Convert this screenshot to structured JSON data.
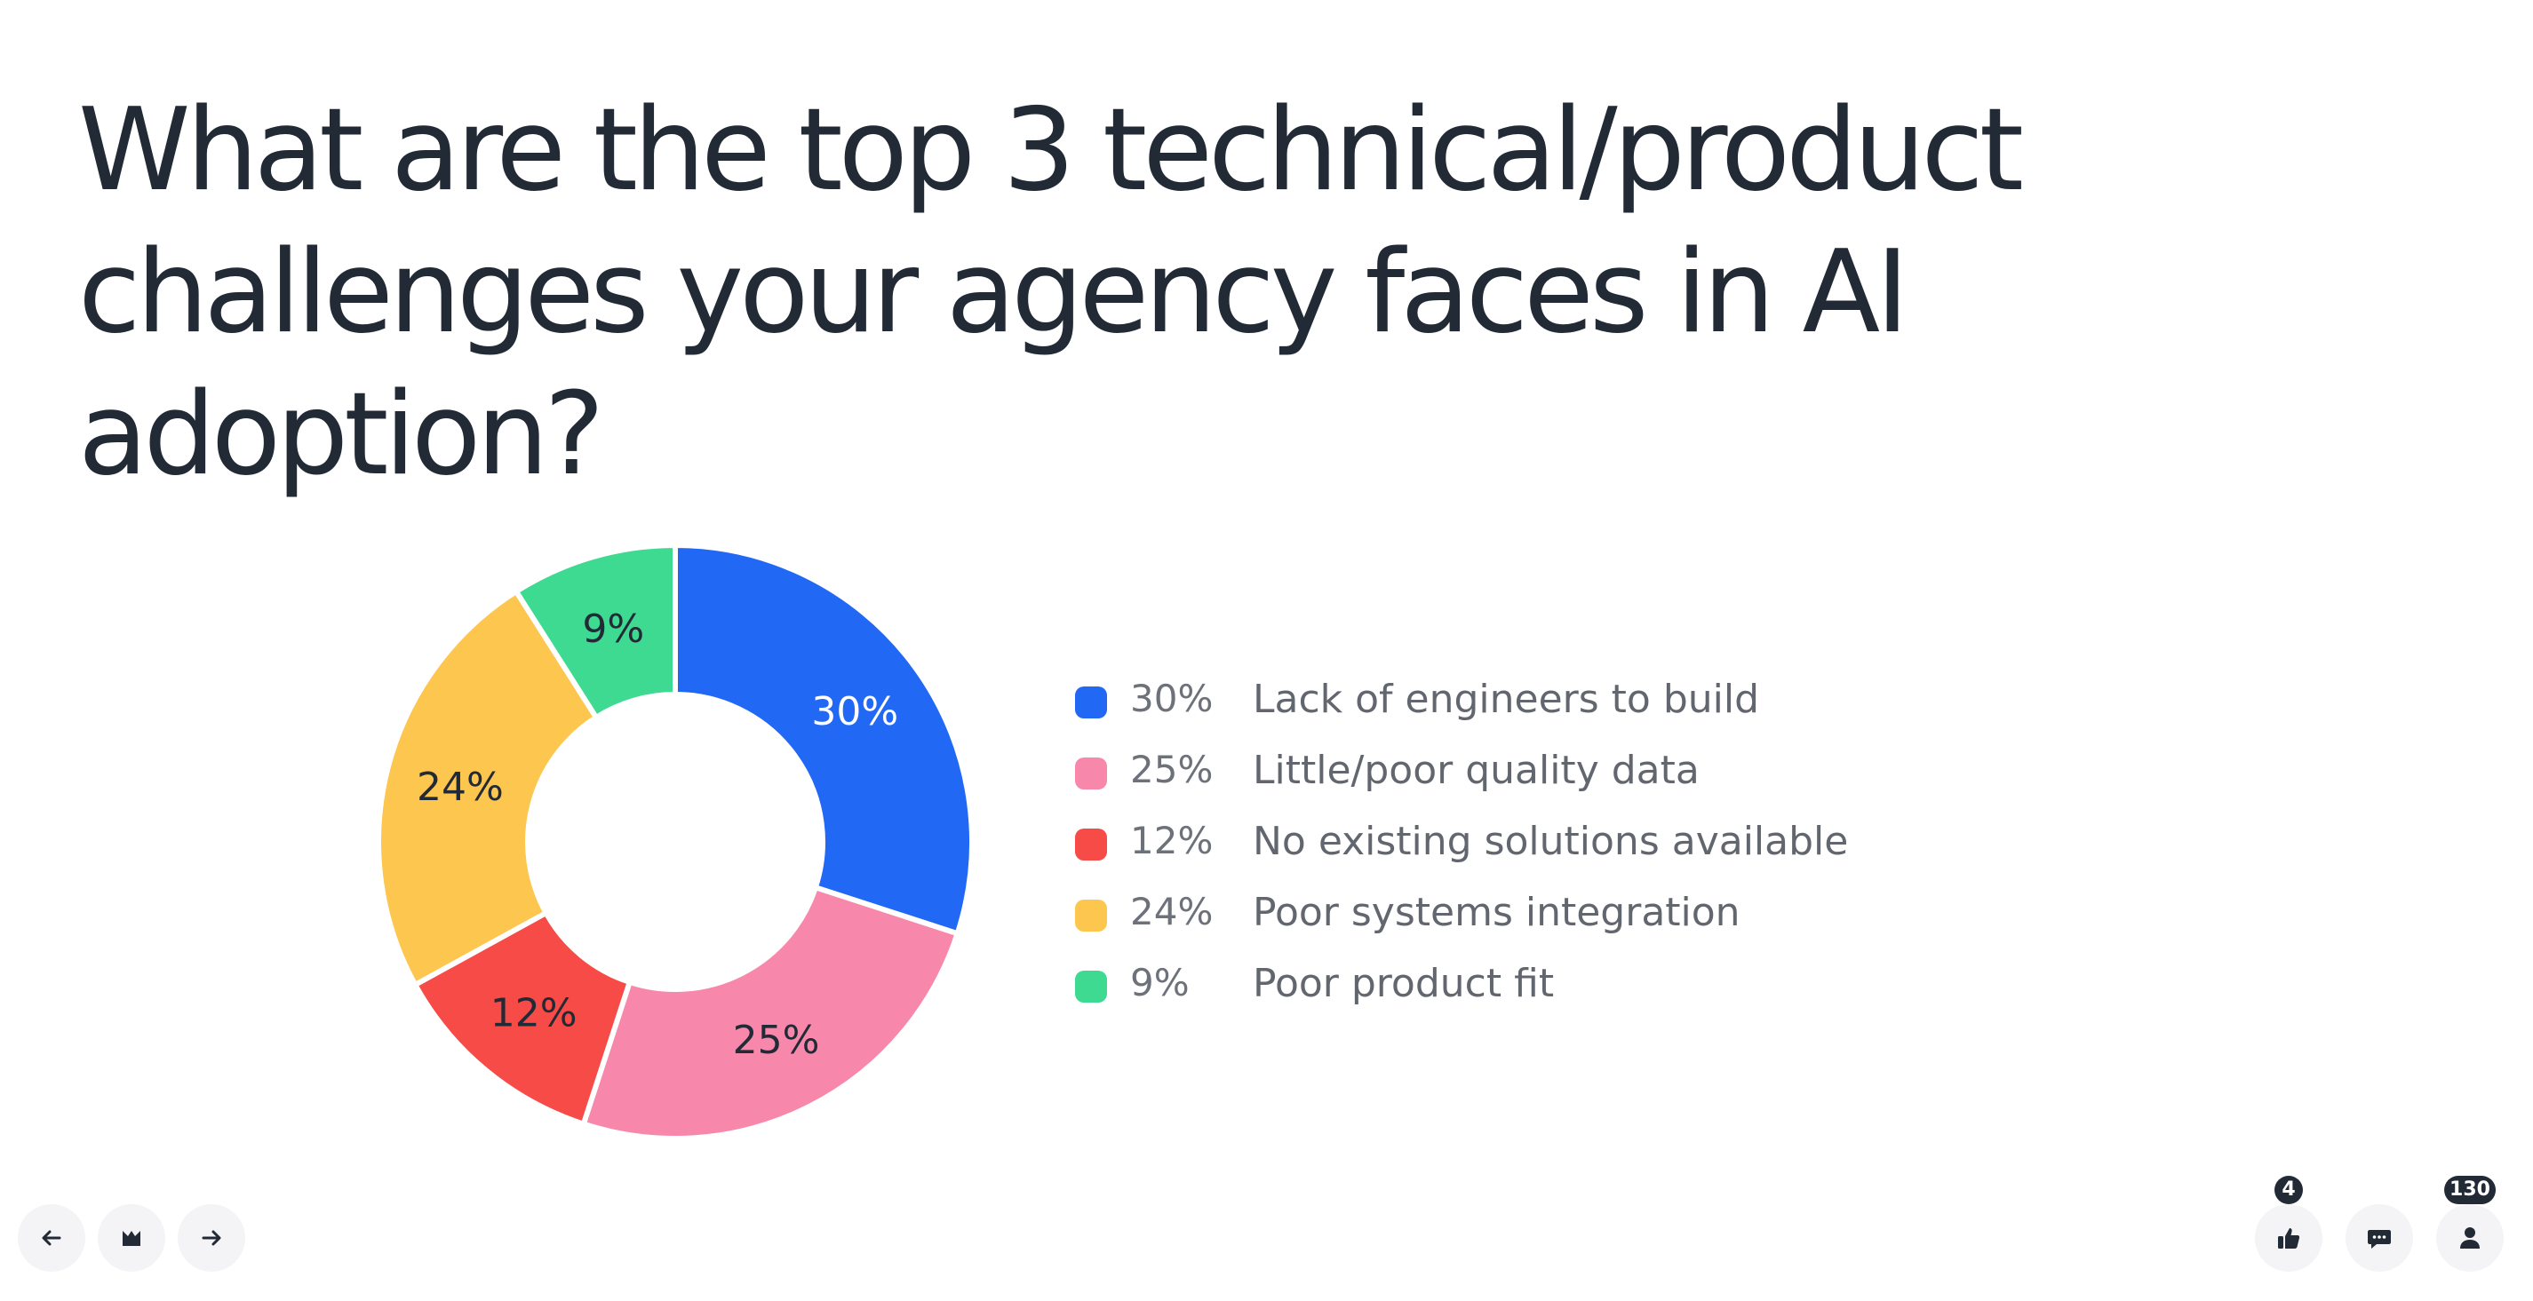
{
  "title": "What are the top 3 technical/product challenges your agency faces in AI adoption?",
  "chart_data": {
    "type": "pie",
    "donut": true,
    "legend_position": "right",
    "slices": [
      {
        "label": "Lack of engineers to build",
        "value": 30,
        "value_label": "30%",
        "color": "#2169f5",
        "text_color": "#ffffff"
      },
      {
        "label": "Little/poor quality data",
        "value": 25,
        "value_label": "25%",
        "color": "#f888ab",
        "text_color": "#222a35"
      },
      {
        "label": "No existing solutions available",
        "value": 12,
        "value_label": "12%",
        "color": "#f74b47",
        "text_color": "#222a35"
      },
      {
        "label": "Poor systems integration",
        "value": 24,
        "value_label": "24%",
        "color": "#fcc64f",
        "text_color": "#222a35"
      },
      {
        "label": "Poor product fit",
        "value": 9,
        "value_label": "9%",
        "color": "#3fda92",
        "text_color": "#222a35"
      }
    ]
  },
  "controls": {
    "prev_icon": "arrow-left-icon",
    "menu_icon": "mentimeter-logo-icon",
    "next_icon": "arrow-right-icon",
    "reactions_icon": "thumbs-up-icon",
    "reactions_count": "4",
    "qa_icon": "chat-bubble-icon",
    "participants_icon": "person-icon",
    "participants_count": "130"
  }
}
